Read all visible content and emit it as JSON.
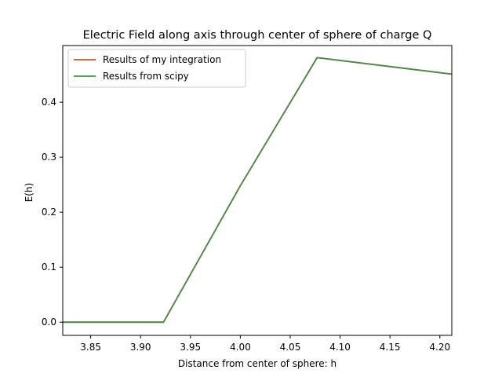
{
  "chart_data": {
    "type": "line",
    "title": "Electric Field along axis through center of sphere of charge Q",
    "xlabel": "Distance from center of sphere: h",
    "ylabel": "E(h)",
    "xlim": [
      3.822,
      4.212
    ],
    "ylim": [
      -0.024,
      0.503
    ],
    "xticks": [
      3.85,
      3.9,
      3.95,
      4.0,
      4.05,
      4.1,
      4.15,
      4.2
    ],
    "xtick_labels": [
      "3.85",
      "3.90",
      "3.95",
      "4.00",
      "4.05",
      "4.10",
      "4.15",
      "4.20"
    ],
    "yticks": [
      0.0,
      0.1,
      0.2,
      0.3,
      0.4
    ],
    "ytick_labels": [
      "0.0",
      "0.1",
      "0.2",
      "0.3",
      "0.4"
    ],
    "grid": false,
    "legend_position": "top-left",
    "series": [
      {
        "name": "Results of my integration",
        "color": "#c8552a",
        "x": [
          3.822,
          3.923,
          4.0,
          4.077,
          4.212
        ],
        "y": [
          0.0,
          0.0,
          0.248,
          0.481,
          0.451
        ]
      },
      {
        "name": "Results from scipy",
        "color": "#4a8a4a",
        "x": [
          3.822,
          3.923,
          4.0,
          4.077,
          4.212
        ],
        "y": [
          0.0,
          0.0,
          0.248,
          0.481,
          0.451
        ]
      }
    ]
  }
}
